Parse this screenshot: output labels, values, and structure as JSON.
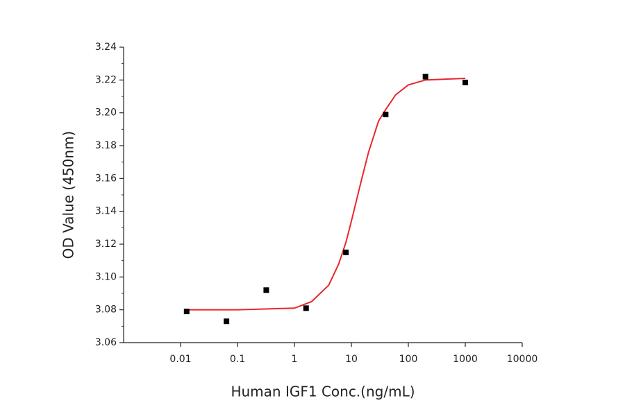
{
  "chart_data": {
    "type": "scatter",
    "x_label": "Human IGF1 Conc.(ng/mL)",
    "y_label": "OD Value (450nm)",
    "x_scale": "log",
    "xlim": [
      0.001,
      10000
    ],
    "xticks": [
      0.01,
      0.1,
      1,
      10,
      100,
      1000,
      10000
    ],
    "ylim": [
      3.06,
      3.24
    ],
    "yticks": [
      3.06,
      3.08,
      {
        "value": 3.1,
        "label": "3.10"
      },
      3.12,
      3.14,
      3.16,
      3.18,
      {
        "value": 3.2,
        "label": "3.20"
      },
      3.22,
      3.24
    ],
    "yminorticks": [
      3.07,
      3.09,
      3.11,
      3.13,
      3.15,
      3.17,
      3.19,
      3.21,
      3.23
    ],
    "series": [
      {
        "type": "scatter",
        "color": "#000000",
        "x": [
          0.0128,
          0.064,
          0.32,
          1.6,
          8,
          40,
          200,
          1000
        ],
        "values": [
          3.079,
          3.073,
          3.092,
          3.081,
          3.115,
          3.199,
          3.222,
          3.2185
        ]
      },
      {
        "type": "line",
        "color": "#e8262a",
        "x": [
          0.0128,
          0.1,
          1,
          2,
          4,
          6,
          8,
          10,
          15,
          20,
          30,
          40,
          60,
          100,
          200,
          1000
        ],
        "values": [
          3.08,
          3.08,
          3.081,
          3.085,
          3.095,
          3.108,
          3.121,
          3.134,
          3.159,
          3.176,
          3.195,
          3.202,
          3.211,
          3.217,
          3.22,
          3.221
        ]
      }
    ]
  }
}
